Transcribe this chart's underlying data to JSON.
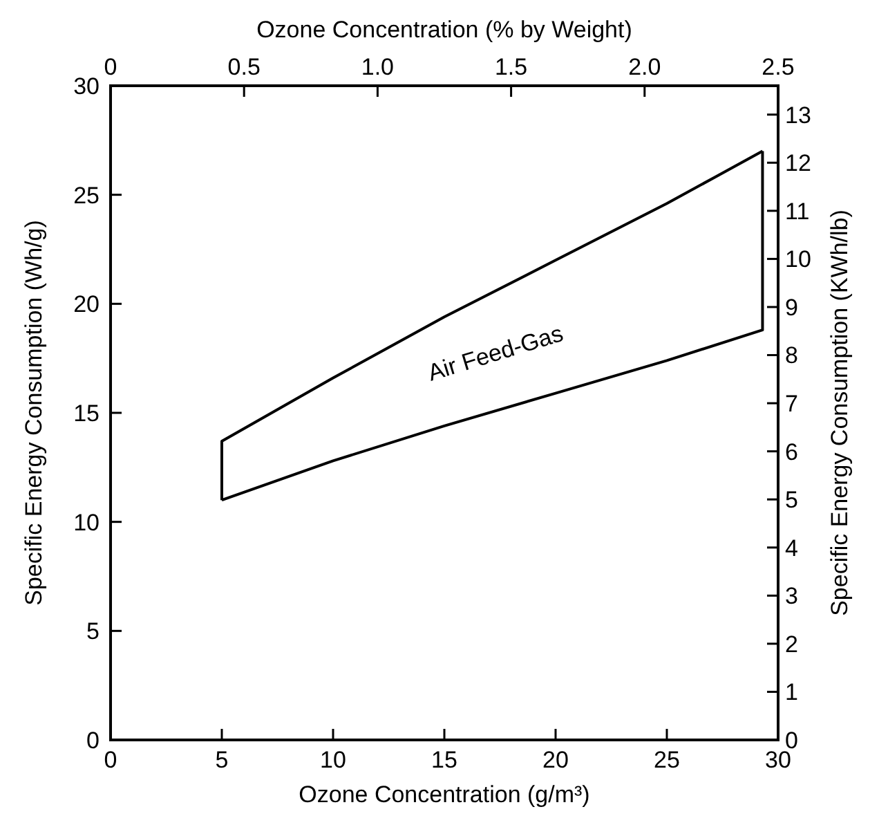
{
  "chart_data": {
    "type": "line",
    "xlabel": "Ozone Concentration (g/m³)",
    "ylabel": "Specific Energy Consumption (Wh/g)",
    "y2label": "Specific Energy Consumption (KWh/lb)",
    "x2label": "Ozone Concentration (% by Weight)",
    "xlim": [
      0,
      30
    ],
    "xticks": [
      0,
      5,
      10,
      15,
      20,
      25,
      30
    ],
    "ylim": [
      0,
      30
    ],
    "yticks": [
      0,
      5,
      10,
      15,
      20,
      25,
      30
    ],
    "x2lim": [
      0,
      2.5
    ],
    "x2ticks": [
      0,
      {
        "value": 0.5,
        "label": "0.5"
      },
      {
        "value": 1,
        "label": "1.0"
      },
      {
        "value": 1.5,
        "label": "1.5"
      },
      {
        "value": 2,
        "label": "2.0"
      },
      {
        "value": 2.5,
        "label": "2.5"
      }
    ],
    "y2lim": [
      0,
      13.6
    ],
    "y2ticks": [
      0,
      1,
      2,
      3,
      4,
      5,
      6,
      7,
      8,
      9,
      10,
      11,
      12,
      13
    ],
    "series": [
      {
        "color": "#000000",
        "x": [
          5,
          5,
          10,
          15,
          20,
          25,
          29.3
        ],
        "values": [
          11,
          13.7,
          16.6,
          19.4,
          22,
          24.6,
          27
        ]
      },
      {
        "color": "#000000",
        "x": [
          5,
          10,
          15,
          20,
          25,
          29.3,
          29.3
        ],
        "values": [
          11,
          12.8,
          14.4,
          15.9,
          17.4,
          18.8,
          27
        ]
      }
    ],
    "annotations": [
      "Air Feed-Gas"
    ],
    "grid": false
  }
}
